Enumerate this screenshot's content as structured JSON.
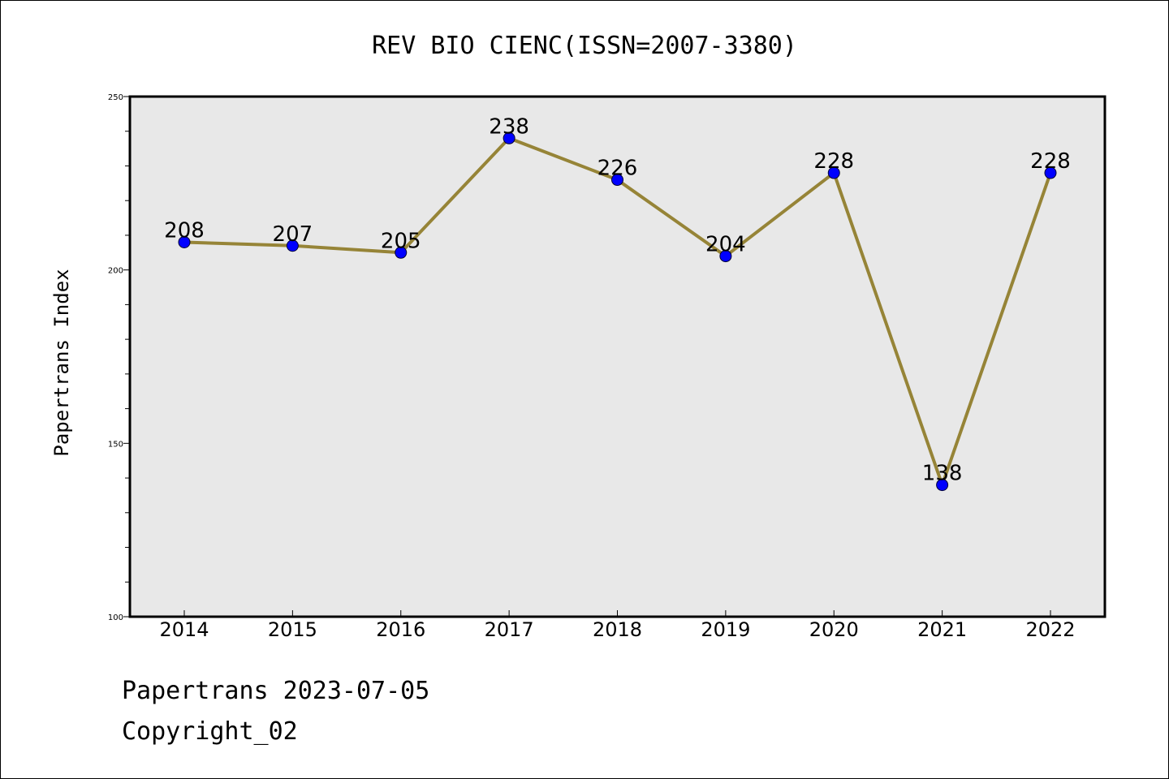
{
  "chart_data": {
    "type": "line",
    "title": "REV BIO CIENC(ISSN=2007-3380)",
    "ylabel": "Papertrans Index",
    "xlabel": "",
    "categories": [
      "2014",
      "2015",
      "2016",
      "2017",
      "2018",
      "2019",
      "2020",
      "2021",
      "2022"
    ],
    "series": [
      {
        "values": [
          208,
          207,
          205,
          238,
          226,
          204,
          228,
          138,
          228
        ]
      }
    ],
    "ylim": [
      100,
      250
    ],
    "yticks": [
      100,
      150,
      200,
      250
    ],
    "grid": false,
    "line_color": "#968437",
    "marker_color": "#0000ff",
    "plot_background": "#e8e8e8"
  },
  "footer": {
    "date_line": "Papertrans 2023-07-05",
    "copyright_line": "Copyright_02"
  }
}
